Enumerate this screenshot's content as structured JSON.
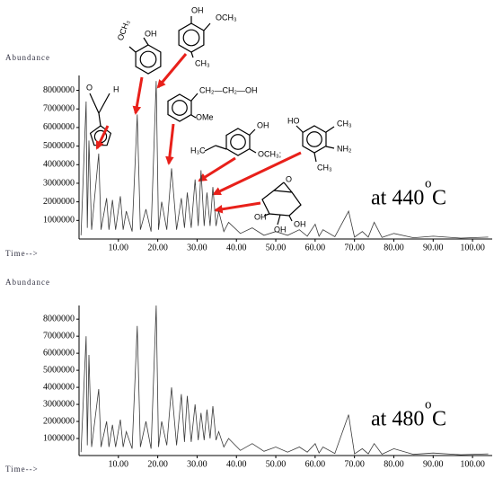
{
  "chart_data": [
    {
      "type": "line",
      "y_label": "Abundance",
      "x_label": "Time-->",
      "annotation": {
        "text": "at 440",
        "sup": "o",
        "unit": "C"
      },
      "structure_labels": [
        "OH",
        "OCH₃",
        "CH₃",
        "OCH₃",
        "OH",
        "O",
        "H",
        "CH₂—CH₂—OH",
        "OMe",
        "OH",
        "OCH₃;",
        "H₃C",
        "HO",
        "CH₃",
        "NH₂",
        "CH₃",
        "O",
        "OH",
        "OH",
        "OH"
      ],
      "x": [
        0.5,
        1.8,
        2.1,
        2.5,
        3.2,
        5.0,
        5.6,
        7.0,
        7.6,
        8.5,
        9.3,
        10.5,
        11.2,
        12,
        13.5,
        14.8,
        15.6,
        17,
        18.3,
        19.6,
        20.2,
        21,
        22.3,
        23.5,
        24.8,
        26,
        26.8,
        27.5,
        28.5,
        29.5,
        30.3,
        31,
        31.8,
        32.5,
        33.3,
        34,
        34.8,
        35.5,
        36.8,
        38,
        41,
        44,
        47,
        50,
        53,
        56,
        58,
        60,
        61,
        62,
        65,
        68.5,
        70,
        72,
        73.5,
        75,
        77,
        80,
        85,
        90,
        97,
        104
      ],
      "series": [
        {
          "color": "#3a3a3a",
          "values": [
            200000,
            7400000,
            600000,
            5300000,
            500000,
            4600000,
            500000,
            2200000,
            500000,
            2100000,
            500000,
            2300000,
            500000,
            1500000,
            400000,
            6700000,
            500000,
            1600000,
            400000,
            8500000,
            500000,
            2000000,
            500000,
            3800000,
            500000,
            2200000,
            600000,
            2500000,
            600000,
            3200000,
            700000,
            3700000,
            700000,
            2500000,
            700000,
            2800000,
            700000,
            1500000,
            400000,
            900000,
            300000,
            600000,
            200000,
            400000,
            200000,
            500000,
            150000,
            800000,
            150000,
            500000,
            120000,
            1500000,
            100000,
            400000,
            100000,
            900000,
            80000,
            300000,
            70000,
            150000,
            50000,
            100000
          ]
        }
      ],
      "xlim": [
        0,
        105
      ],
      "ylim": [
        0,
        8800000
      ],
      "xticks": [
        {
          "value": 10,
          "label": "10.00"
        },
        {
          "value": 20,
          "label": "20.00"
        },
        {
          "value": 30,
          "label": "30.00"
        },
        {
          "value": 40,
          "label": "40.00"
        },
        {
          "value": 50,
          "label": "50.00"
        },
        {
          "value": 60,
          "label": "60.00"
        },
        {
          "value": 70,
          "label": "70.00"
        },
        {
          "value": 80,
          "label": "80.00"
        },
        {
          "value": 90,
          "label": "90.00"
        },
        {
          "value": 100,
          "label": "100.00"
        }
      ],
      "yticks": [
        1000000,
        2000000,
        3000000,
        4000000,
        5000000,
        6000000,
        7000000,
        8000000
      ]
    },
    {
      "type": "line",
      "y_label": "Abundance",
      "x_label": "Time-->",
      "annotation": {
        "text": "at 480",
        "sup": "o",
        "unit": "C"
      },
      "x": [
        0.5,
        1.8,
        2.1,
        2.5,
        3.2,
        5.0,
        5.6,
        7.0,
        7.6,
        8.5,
        9.3,
        10.5,
        11.2,
        12,
        13.5,
        14.8,
        15.6,
        17,
        18.3,
        19.6,
        20.2,
        21,
        22.3,
        23.5,
        24.8,
        26,
        26.8,
        27.5,
        28.5,
        29.5,
        30.3,
        31,
        31.8,
        32.5,
        33.3,
        34,
        34.8,
        35.5,
        36.8,
        38,
        41,
        44,
        47,
        50,
        53,
        56,
        58,
        60,
        61,
        62,
        65,
        68.5,
        70,
        72,
        73.5,
        75,
        77,
        80,
        85,
        90,
        97,
        104
      ],
      "series": [
        {
          "color": "#3a3a3a",
          "values": [
            200000,
            7000000,
            600000,
            5900000,
            500000,
            3900000,
            500000,
            2000000,
            500000,
            1800000,
            500000,
            2100000,
            500000,
            1400000,
            400000,
            7600000,
            500000,
            2000000,
            400000,
            8800000,
            500000,
            2000000,
            600000,
            4000000,
            600000,
            3600000,
            800000,
            3500000,
            800000,
            3000000,
            900000,
            2500000,
            900000,
            2700000,
            1000000,
            2900000,
            900000,
            1400000,
            500000,
            1000000,
            300000,
            700000,
            250000,
            500000,
            200000,
            500000,
            200000,
            700000,
            150000,
            500000,
            120000,
            2400000,
            100000,
            400000,
            100000,
            700000,
            80000,
            400000,
            70000,
            150000,
            50000,
            100000
          ]
        }
      ],
      "xlim": [
        0,
        105
      ],
      "ylim": [
        0,
        8800000
      ],
      "xticks": [
        {
          "value": 10,
          "label": "10.00"
        },
        {
          "value": 20,
          "label": "20.00"
        },
        {
          "value": 30,
          "label": "30.00"
        },
        {
          "value": 40,
          "label": "40.00"
        },
        {
          "value": 50,
          "label": "50.00"
        },
        {
          "value": 60,
          "label": "60.00"
        },
        {
          "value": 70,
          "label": "70.00"
        },
        {
          "value": 80,
          "label": "80.00"
        },
        {
          "value": 90,
          "label": "90.00"
        },
        {
          "value": 100,
          "label": "100.00"
        }
      ],
      "yticks": [
        1000000,
        2000000,
        3000000,
        4000000,
        5000000,
        6000000,
        7000000,
        8000000
      ]
    }
  ]
}
